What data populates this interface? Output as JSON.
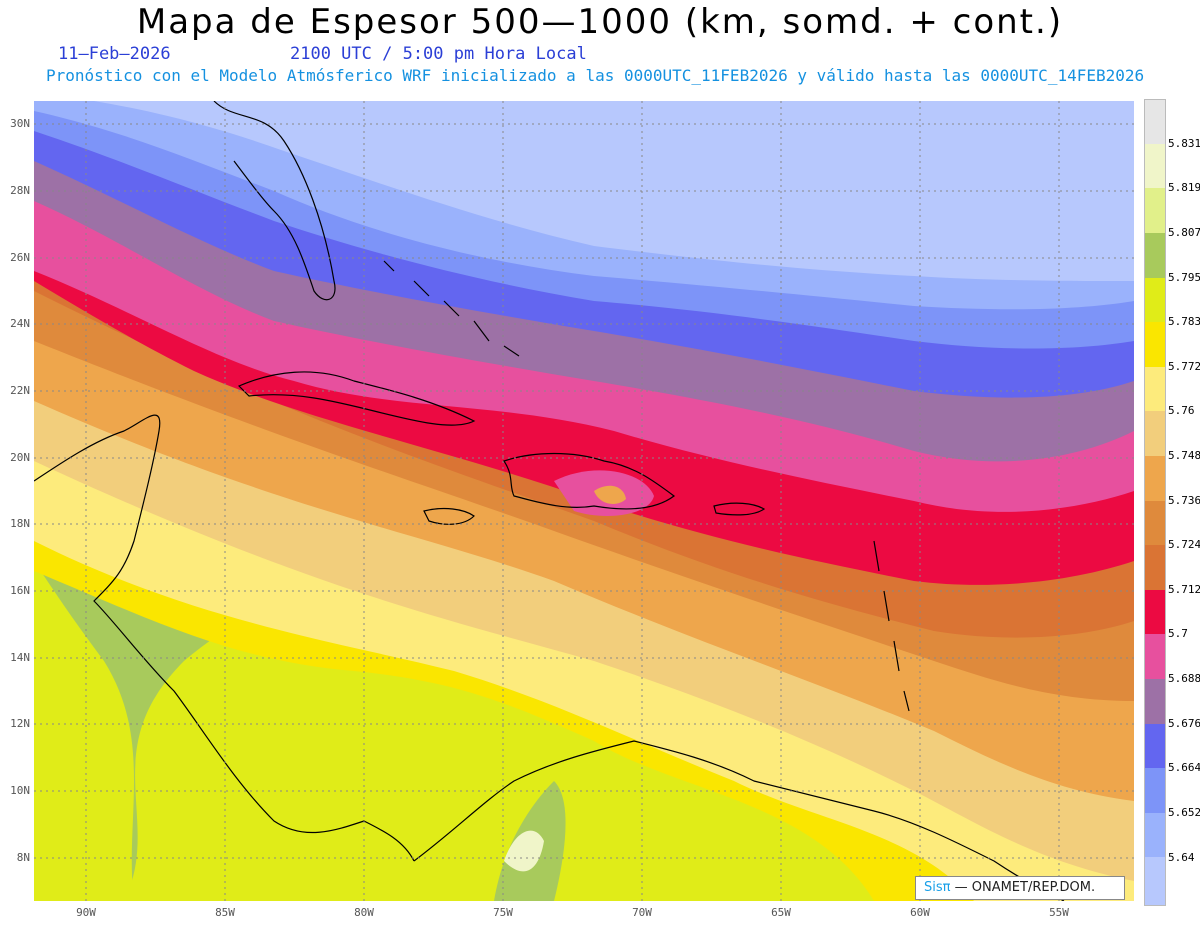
{
  "header": {
    "title": "Mapa de Espesor 500—1000 (km, somd. + cont.)",
    "date": "11—Feb—2026",
    "time": "2100 UTC / 5:00 pm Hora Local",
    "subtitle": "Pronóstico con el Modelo Atmósferico WRF inicializado a las 0000UTC_11FEB2026 y válido hasta las  0000UTC_14FEB2026"
  },
  "map": {
    "lat_labels": [
      "30N",
      "28N",
      "26N",
      "24N",
      "22N",
      "20N",
      "18N",
      "16N",
      "14N",
      "12N",
      "10N",
      "8N"
    ],
    "lon_labels": [
      "90W",
      "85W",
      "80W",
      "75W",
      "70W",
      "65W",
      "60W",
      "55W"
    ]
  },
  "colorbar": {
    "labels": [
      "5.831",
      "5.819",
      "5.807",
      "5.795",
      "5.783",
      "5.772",
      "5.76",
      "5.748",
      "5.736",
      "5.724",
      "5.712",
      "5.7",
      "5.688",
      "5.676",
      "5.664",
      "5.652",
      "5.64"
    ],
    "colors": [
      "#e6e6e6",
      "#f0f5c9",
      "#e1f08a",
      "#a8ca5c",
      "#e0ec18",
      "#fae600",
      "#fdeb7c",
      "#f2ce7c",
      "#eea64c",
      "#df8a3c",
      "#da7434",
      "#ec0a42",
      "#e7509e",
      "#9d71a6",
      "#6366f0",
      "#7d94f8",
      "#9ab2fc",
      "#b7c8fd"
    ]
  },
  "credit": {
    "brand": "Sis",
    "pi": "π",
    "org": "— ONAMET/REP.DOM."
  }
}
